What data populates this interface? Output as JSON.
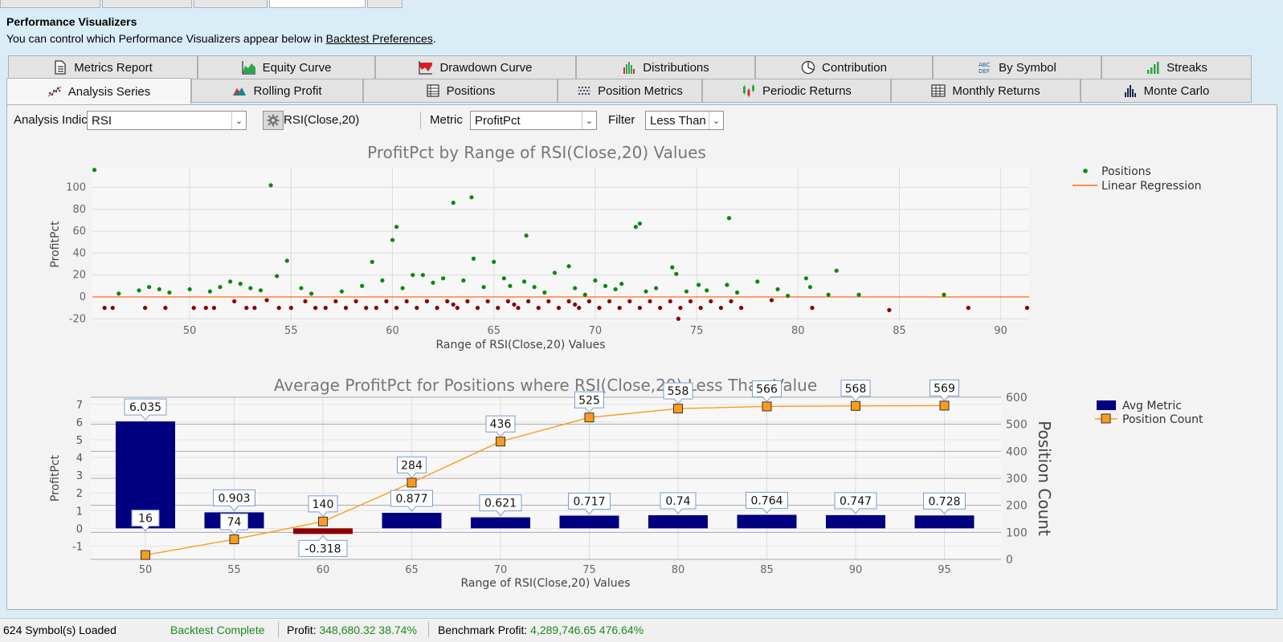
{
  "header": {
    "title": "Performance Visualizers",
    "desc_prefix": "You can control which Performance Visualizers appear below in ",
    "desc_link": "Backtest Preferences",
    "desc_suffix": "."
  },
  "tabs_row1": [
    {
      "label": "Metrics Report",
      "icon": "document-icon"
    },
    {
      "label": "Equity Curve",
      "icon": "area-chart-icon"
    },
    {
      "label": "Drawdown Curve",
      "icon": "drawdown-chart-icon"
    },
    {
      "label": "Distributions",
      "icon": "bar-chart-icon"
    },
    {
      "label": "Contribution",
      "icon": "pie-chart-icon"
    },
    {
      "label": "By Symbol",
      "icon": "abc-icon"
    },
    {
      "label": "Streaks",
      "icon": "streaks-icon"
    }
  ],
  "tabs_row2": [
    {
      "label": "Analysis Series",
      "icon": "scatter-icon",
      "active": true
    },
    {
      "label": "Rolling Profit",
      "icon": "mountain-chart-icon"
    },
    {
      "label": "Positions",
      "icon": "table-icon"
    },
    {
      "label": "Position Metrics",
      "icon": "dotgrid-icon"
    },
    {
      "label": "Periodic Returns",
      "icon": "candlestick-icon"
    },
    {
      "label": "Monthly Returns",
      "icon": "grid-icon"
    },
    {
      "label": "Monte Carlo",
      "icon": "histogram-icon"
    }
  ],
  "toolbar": {
    "indicator_label": "Analysis Indicator",
    "indicator_value": "RSI",
    "indicator_desc": "RSI(Close,20)",
    "metric_label": "Metric",
    "metric_value": "ProfitPct",
    "filter_label": "Filter",
    "filter_value": "Less Than"
  },
  "chart_data": [
    {
      "type": "scatter",
      "title": "ProfitPct by Range of RSI(Close,20) Values",
      "xlabel": "Range of RSI(Close,20) Values",
      "ylabel": "ProfitPct",
      "xlim": [
        45.2,
        91.4
      ],
      "ylim": [
        -22,
        118
      ],
      "xticks": [
        50,
        55,
        60,
        65,
        70,
        75,
        80,
        85,
        90
      ],
      "yticks": [
        -20,
        0,
        20,
        40,
        60,
        80,
        100
      ],
      "grid": true,
      "legend": "top-right",
      "series": [
        {
          "name": "Positions",
          "color": "#0a8a0a",
          "points": [
            [
              45.3,
              116
            ],
            [
              54.0,
              102
            ],
            [
              63.0,
              86
            ],
            [
              63.9,
              91
            ],
            [
              60.2,
              64
            ],
            [
              60.0,
              52
            ],
            [
              66.6,
              56
            ],
            [
              72.2,
              67
            ],
            [
              72.0,
              64
            ],
            [
              76.6,
              72
            ],
            [
              54.8,
              33
            ],
            [
              59.0,
              32
            ],
            [
              64.0,
              35
            ],
            [
              65.0,
              32
            ],
            [
              68.7,
              28
            ],
            [
              73.8,
              27
            ],
            [
              81.9,
              24
            ],
            [
              80.4,
              17
            ],
            [
              54.3,
              19
            ],
            [
              61.0,
              20
            ],
            [
              57.5,
              5
            ],
            [
              62.0,
              13
            ],
            [
              65.5,
              17
            ],
            [
              67.0,
              9
            ],
            [
              70.0,
              15
            ],
            [
              71.3,
              12
            ],
            [
              74.0,
              21
            ],
            [
              75.1,
              11
            ],
            [
              76.5,
              11
            ],
            [
              78.0,
              14
            ],
            [
              79.0,
              7
            ],
            [
              80.6,
              9
            ],
            [
              83.0,
              2
            ],
            [
              87.2,
              2
            ],
            [
              46.5,
              3
            ],
            [
              47.5,
              6
            ],
            [
              48.0,
              9
            ],
            [
              48.5,
              7
            ],
            [
              49.0,
              4
            ],
            [
              50.0,
              7
            ],
            [
              51.0,
              5
            ],
            [
              51.5,
              9
            ],
            [
              52.0,
              14
            ],
            [
              52.5,
              12
            ],
            [
              53.0,
              8
            ],
            [
              53.5,
              6
            ],
            [
              55.5,
              8
            ],
            [
              56.0,
              3
            ],
            [
              58.5,
              10
            ],
            [
              59.5,
              15
            ],
            [
              60.5,
              8
            ],
            [
              61.5,
              20
            ],
            [
              62.5,
              17
            ],
            [
              63.5,
              15
            ],
            [
              64.5,
              9
            ],
            [
              65.8,
              10
            ],
            [
              66.5,
              14
            ],
            [
              67.5,
              4
            ],
            [
              68.0,
              22
            ],
            [
              69.0,
              8
            ],
            [
              69.5,
              2
            ],
            [
              70.5,
              10
            ],
            [
              71.0,
              7
            ],
            [
              72.5,
              5
            ],
            [
              73.0,
              8
            ],
            [
              74.5,
              5
            ],
            [
              75.5,
              6
            ],
            [
              77.0,
              4
            ],
            [
              79.5,
              1
            ],
            [
              81.5,
              2
            ]
          ]
        },
        {
          "name": "",
          "color": "#8b0000",
          "points": [
            [
              45.8,
              -10
            ],
            [
              46.2,
              -10
            ],
            [
              47.8,
              -10
            ],
            [
              48.8,
              -10
            ],
            [
              50.2,
              -10
            ],
            [
              50.8,
              -10
            ],
            [
              51.2,
              -10
            ],
            [
              52.2,
              -4
            ],
            [
              52.8,
              -10
            ],
            [
              53.2,
              -10
            ],
            [
              53.8,
              -3
            ],
            [
              54.4,
              -10
            ],
            [
              55.0,
              -10
            ],
            [
              55.7,
              -4
            ],
            [
              56.2,
              -10
            ],
            [
              56.7,
              -10
            ],
            [
              57.2,
              -4
            ],
            [
              57.7,
              -10
            ],
            [
              58.2,
              -4
            ],
            [
              58.7,
              -10
            ],
            [
              59.2,
              -10
            ],
            [
              59.7,
              -4
            ],
            [
              60.2,
              -10
            ],
            [
              60.7,
              -4
            ],
            [
              61.2,
              -10
            ],
            [
              61.7,
              -4
            ],
            [
              62.2,
              -10
            ],
            [
              62.7,
              -4
            ],
            [
              63.2,
              -10
            ],
            [
              63.7,
              -4
            ],
            [
              64.2,
              -10
            ],
            [
              64.7,
              -4
            ],
            [
              65.2,
              -10
            ],
            [
              65.7,
              -4
            ],
            [
              66.2,
              -10
            ],
            [
              66.7,
              -4
            ],
            [
              67.2,
              -10
            ],
            [
              67.7,
              -4
            ],
            [
              68.2,
              -10
            ],
            [
              68.7,
              -4
            ],
            [
              69.2,
              -10
            ],
            [
              69.7,
              -4
            ],
            [
              70.2,
              -10
            ],
            [
              70.7,
              -4
            ],
            [
              71.2,
              -10
            ],
            [
              71.7,
              -4
            ],
            [
              72.2,
              -10
            ],
            [
              72.7,
              -4
            ],
            [
              73.2,
              -10
            ],
            [
              73.7,
              -4
            ],
            [
              74.2,
              -10
            ],
            [
              74.7,
              -4
            ],
            [
              75.2,
              -10
            ],
            [
              75.7,
              -4
            ],
            [
              76.2,
              -10
            ],
            [
              76.7,
              -4
            ],
            [
              77.2,
              -10
            ],
            [
              78.7,
              -3
            ],
            [
              80.7,
              -10
            ],
            [
              84.5,
              -12
            ],
            [
              88.4,
              -10
            ],
            [
              91.3,
              -10
            ],
            [
              74.1,
              -20
            ],
            [
              63.0,
              -7
            ],
            [
              66.0,
              -7
            ],
            [
              69.0,
              -7
            ]
          ]
        },
        {
          "name": "Linear Regression",
          "color": "#ff6a1a",
          "line": [
            [
              45.2,
              0
            ],
            [
              91.4,
              0
            ]
          ]
        }
      ]
    },
    {
      "type": "bar",
      "title": "Average ProfitPct for Positions where RSI(Close,20) Less Than Value",
      "xlabel": "Range of RSI(Close,20) Values",
      "ylabel": "ProfitPct",
      "y2label": "Position Count",
      "categories": [
        50,
        55,
        60,
        65,
        70,
        75,
        80,
        85,
        90,
        95
      ],
      "yticks": [
        -1,
        0,
        1,
        2,
        3,
        4,
        5,
        6,
        7
      ],
      "y2ticks": [
        0,
        100,
        200,
        300,
        400,
        500,
        600
      ],
      "ylim": [
        -1.75,
        7.4
      ],
      "y2lim": [
        0,
        600
      ],
      "legend": "top-right",
      "series": [
        {
          "name": "Avg Metric",
          "type": "bar",
          "color": "#000080",
          "negative_color": "#8b0000",
          "values": [
            6.035,
            0.903,
            -0.318,
            0.877,
            0.621,
            0.717,
            0.74,
            0.764,
            0.747,
            0.728
          ],
          "labels": [
            "6.035",
            "0.903",
            "-0.318",
            "0.877",
            "0.621",
            "0.717",
            "0.74",
            "0.764",
            "0.747",
            "0.728"
          ]
        },
        {
          "name": "Position Count",
          "type": "line",
          "axis": "y2",
          "color": "#ff9a1a",
          "values": [
            16,
            74,
            140,
            284,
            436,
            525,
            558,
            566,
            568,
            569
          ]
        }
      ]
    }
  ],
  "status": {
    "symbols": "624 Symbol(s) Loaded",
    "backtest": "Backtest Complete",
    "profit_label": "Profit:",
    "profit_value": "348,680.32 38.74%",
    "bench_label": "Benchmark Profit:",
    "bench_value": "4,289,746.65 476.64%"
  }
}
